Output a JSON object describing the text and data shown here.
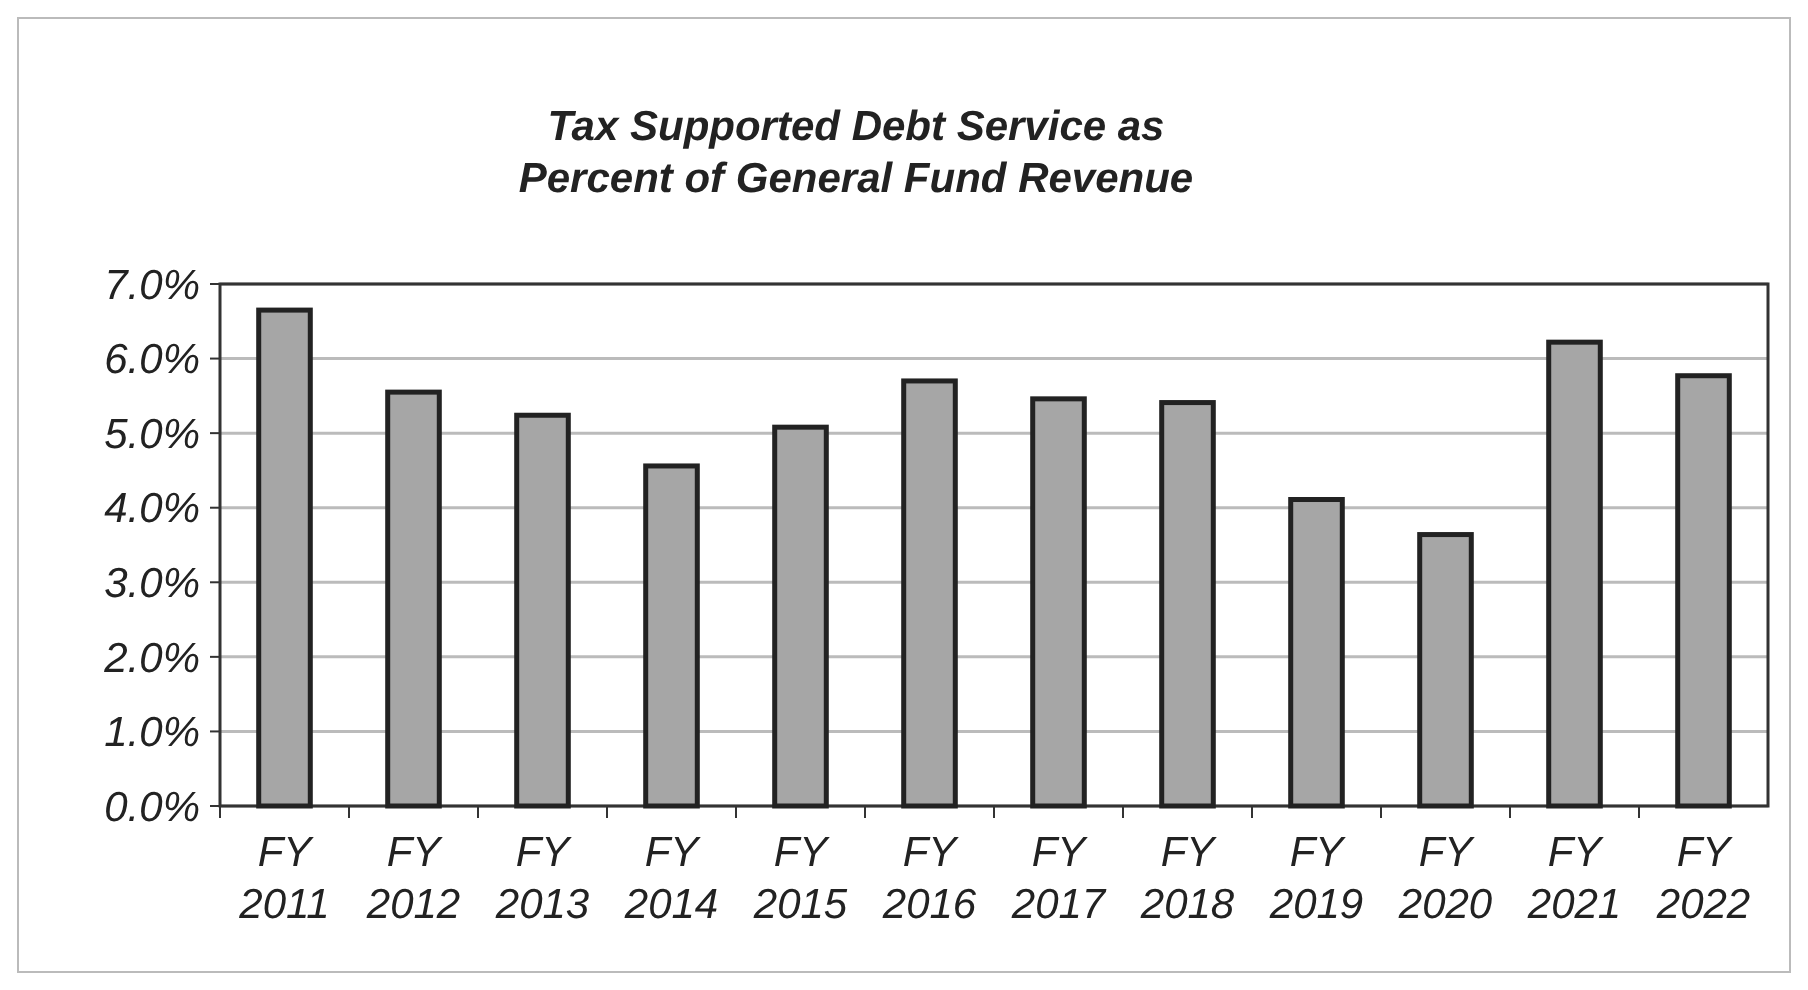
{
  "chart_data": {
    "type": "bar",
    "title": "Tax Supported Debt Service as\nPercent of General Fund Revenue",
    "categories": [
      "FY\n2011",
      "FY\n2012",
      "FY\n2013",
      "FY\n2014",
      "FY\n2015",
      "FY\n2016",
      "FY\n2017",
      "FY\n2018",
      "FY\n2019",
      "FY\n2020",
      "FY\n2021",
      "FY\n2022"
    ],
    "values": [
      6.65,
      5.55,
      5.24,
      4.56,
      5.08,
      5.7,
      5.46,
      5.41,
      4.11,
      3.64,
      6.22,
      5.77
    ],
    "color": "#a6a6a6",
    "ylim": [
      0,
      7
    ],
    "yticks": [
      {
        "value": 0,
        "label": "0.0%"
      },
      {
        "value": 1,
        "label": "1.0%"
      },
      {
        "value": 2,
        "label": "2.0%"
      },
      {
        "value": 3,
        "label": "3.0%"
      },
      {
        "value": 4,
        "label": "4.0%"
      },
      {
        "value": 5,
        "label": "5.0%"
      },
      {
        "value": 6,
        "label": "6.0%"
      },
      {
        "value": 7,
        "label": "7.0%"
      }
    ],
    "grid": "y"
  }
}
